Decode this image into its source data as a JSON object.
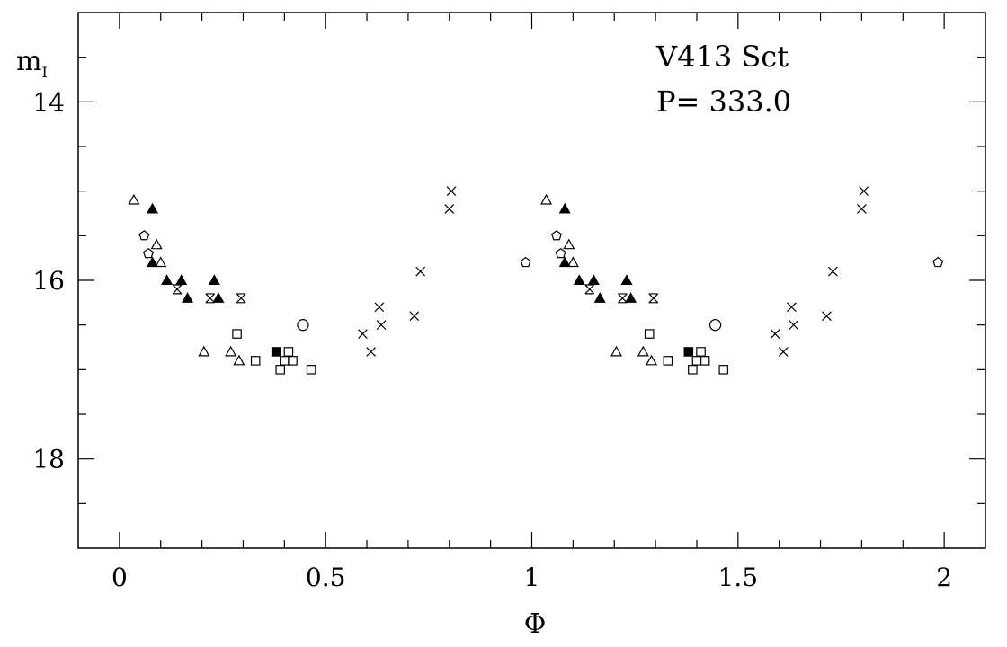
{
  "chart_data": {
    "type": "scatter",
    "title": "V413 Sct",
    "subtitle": "P= 333.0",
    "xlabel": "Φ",
    "ylabel_main": "m",
    "ylabel_sub": "I",
    "xlim": [
      -0.1,
      2.1
    ],
    "ylim": [
      13.0,
      19.0
    ],
    "y_inverted": true,
    "grid": false,
    "x_ticks": [
      0,
      0.5,
      1,
      1.5,
      2
    ],
    "x_tick_labels": [
      "0",
      "0.5",
      "1",
      "1.5",
      "2"
    ],
    "y_ticks": [
      14,
      16,
      18
    ],
    "y_tick_labels": [
      "14",
      "16",
      "18"
    ],
    "series": [
      {
        "marker": "triangle-open",
        "points": [
          [
            0.035,
            15.1
          ],
          [
            0.09,
            15.6
          ],
          [
            0.1,
            15.8
          ],
          [
            0.205,
            16.8
          ],
          [
            0.27,
            16.8
          ],
          [
            0.29,
            16.9
          ],
          [
            1.035,
            15.1
          ],
          [
            1.09,
            15.6
          ],
          [
            1.1,
            15.8
          ],
          [
            1.205,
            16.8
          ],
          [
            1.27,
            16.8
          ],
          [
            1.29,
            16.9
          ]
        ]
      },
      {
        "marker": "triangle-filled",
        "points": [
          [
            0.08,
            15.2
          ],
          [
            0.08,
            15.8
          ],
          [
            0.115,
            16.0
          ],
          [
            0.15,
            16.0
          ],
          [
            0.165,
            16.2
          ],
          [
            0.23,
            16.0
          ],
          [
            0.24,
            16.2
          ],
          [
            1.08,
            15.2
          ],
          [
            1.08,
            15.8
          ],
          [
            1.115,
            16.0
          ],
          [
            1.15,
            16.0
          ],
          [
            1.165,
            16.2
          ],
          [
            1.23,
            16.0
          ],
          [
            1.24,
            16.2
          ]
        ]
      },
      {
        "marker": "pentagon-open",
        "points": [
          [
            0.06,
            15.5
          ],
          [
            0.07,
            15.7
          ],
          [
            0.985,
            15.8
          ],
          [
            1.06,
            15.5
          ],
          [
            1.07,
            15.7
          ],
          [
            1.985,
            15.8
          ]
        ]
      },
      {
        "marker": "star-cross",
        "points": [
          [
            0.14,
            16.1
          ],
          [
            0.22,
            16.2
          ],
          [
            0.295,
            16.2
          ],
          [
            1.14,
            16.1
          ],
          [
            1.22,
            16.2
          ],
          [
            1.295,
            16.2
          ]
        ]
      },
      {
        "marker": "square-open",
        "points": [
          [
            0.285,
            16.6
          ],
          [
            0.33,
            16.9
          ],
          [
            0.39,
            17.0
          ],
          [
            0.4,
            16.9
          ],
          [
            0.41,
            16.8
          ],
          [
            0.42,
            16.9
          ],
          [
            0.465,
            17.0
          ],
          [
            1.285,
            16.6
          ],
          [
            1.33,
            16.9
          ],
          [
            1.39,
            17.0
          ],
          [
            1.4,
            16.9
          ],
          [
            1.41,
            16.8
          ],
          [
            1.42,
            16.9
          ],
          [
            1.465,
            17.0
          ]
        ]
      },
      {
        "marker": "square-filled",
        "points": [
          [
            0.38,
            16.8
          ],
          [
            1.38,
            16.8
          ]
        ]
      },
      {
        "marker": "circle-open",
        "points": [
          [
            0.445,
            16.5
          ],
          [
            1.445,
            16.5
          ]
        ]
      },
      {
        "marker": "cross",
        "points": [
          [
            0.59,
            16.6
          ],
          [
            0.61,
            16.8
          ],
          [
            0.63,
            16.3
          ],
          [
            0.635,
            16.5
          ],
          [
            0.715,
            16.4
          ],
          [
            0.73,
            15.9
          ],
          [
            0.8,
            15.2
          ],
          [
            0.805,
            15.0
          ],
          [
            1.59,
            16.6
          ],
          [
            1.61,
            16.8
          ],
          [
            1.63,
            16.3
          ],
          [
            1.635,
            16.5
          ],
          [
            1.715,
            16.4
          ],
          [
            1.73,
            15.9
          ],
          [
            1.8,
            15.2
          ],
          [
            1.805,
            15.0
          ]
        ]
      }
    ]
  }
}
